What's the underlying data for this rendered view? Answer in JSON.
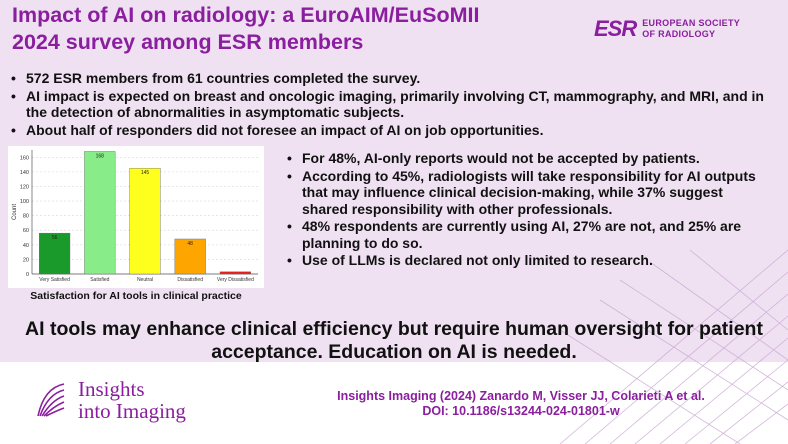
{
  "title": "Impact of AI on radiology: a EuroAIM/EuSoMII 2024 survey among ESR members",
  "society": {
    "mark": "ESR",
    "line1": "EUROPEAN SOCIETY",
    "line2": "OF RADIOLOGY"
  },
  "top_bullets": [
    "572 ESR members from 61 countries completed the survey.",
    "AI impact is expected on breast and oncologic imaging, primarily involving CT, mammography, and MRI, and in the detection of abnormalities in asymptomatic subjects.",
    "About half of responders did not foresee an impact of AI on job opportunities."
  ],
  "right_bullets": [
    "For 48%, AI-only reports would not be accepted by patients.",
    "According to 45%, radiologists will take responsibility for AI outputs that may influence clinical decision-making, while 37% suggest shared responsibility with other professionals.",
    "48% respondents are currently using AI, 27% are not, and 25% are planning to do so.",
    "Use of LLMs is declared not only limited to research."
  ],
  "chart_caption": "Satisfaction for AI tools in clinical practice",
  "chart_data": {
    "type": "bar",
    "categories": [
      "Very Satisfied",
      "Satisfied",
      "Neutral",
      "Dissatisfied",
      "Very Dissatisfied"
    ],
    "values": [
      56,
      168,
      145,
      48,
      3
    ],
    "data_labels": [
      "56",
      "168",
      "145",
      "48",
      ""
    ],
    "colors": [
      "#1a9a2a",
      "#88ec88",
      "#ffff1e",
      "#ffa500",
      "#e8201e"
    ],
    "xlabel": "",
    "ylabel": "Count",
    "ylim": [
      0,
      170
    ],
    "yticks": [
      0,
      20,
      40,
      60,
      80,
      100,
      120,
      140,
      160
    ],
    "grid": true
  },
  "conclusion": "AI tools may enhance clinical efficiency but require human oversight for patient acceptance. Education on AI is needed.",
  "journal": {
    "line1": "Insights",
    "line2": "into Imaging"
  },
  "citation": {
    "line1": "Insights Imaging (2024) Zanardo M, Visser JJ, Colarieti A et al.",
    "line2": "DOI: 10.1186/s13244-024-01801-w"
  },
  "colors": {
    "brand": "#8a1e9e",
    "background": "#efe1f2"
  }
}
